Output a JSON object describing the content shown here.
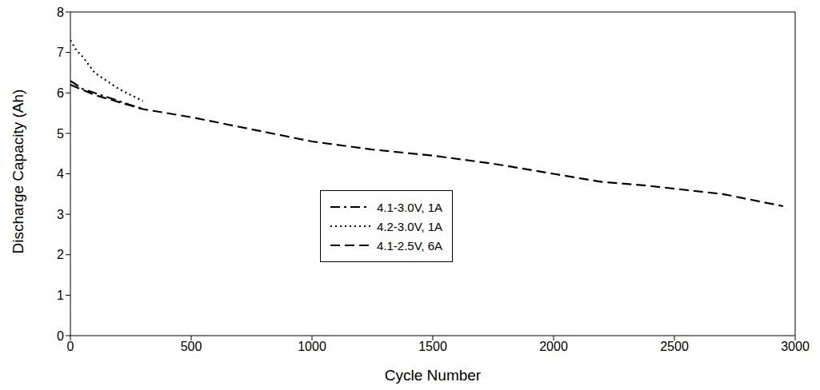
{
  "chart_data": {
    "type": "line",
    "x_label": "Cycle Number",
    "y_label": "Discharge Capacity (Ah)",
    "xlim": [
      0,
      3000
    ],
    "xticks": [
      0,
      500,
      1000,
      1500,
      2000,
      2500,
      3000
    ],
    "ylim": [
      0,
      8
    ],
    "yticks": [
      0,
      1,
      2,
      3,
      4,
      5,
      6,
      7,
      8
    ],
    "grid": false,
    "legend": "center",
    "series": [
      {
        "name": "4.1-3.0V, 1A",
        "color": "#000000",
        "line_style": "dashdot",
        "x": [
          0,
          50,
          100,
          150,
          200,
          250,
          300
        ],
        "values": [
          6.3,
          6.1,
          6.0,
          5.9,
          5.8,
          5.7,
          5.6
        ]
      },
      {
        "name": "4.2-3.0V, 1A",
        "color": "#000000",
        "line_style": "dotted",
        "x": [
          0,
          25,
          50,
          100,
          150,
          200,
          250,
          300
        ],
        "values": [
          7.3,
          7.05,
          6.9,
          6.5,
          6.3,
          6.1,
          5.95,
          5.8
        ]
      },
      {
        "name": "4.1-2.5V, 6A",
        "color": "#000000",
        "line_style": "dashed",
        "x": [
          0,
          100,
          300,
          500,
          750,
          1000,
          1250,
          1500,
          1750,
          2000,
          2200,
          2400,
          2700,
          2950
        ],
        "values": [
          6.2,
          5.95,
          5.6,
          5.4,
          5.1,
          4.8,
          4.6,
          4.45,
          4.25,
          4.0,
          3.8,
          3.7,
          3.5,
          3.2
        ]
      }
    ]
  }
}
